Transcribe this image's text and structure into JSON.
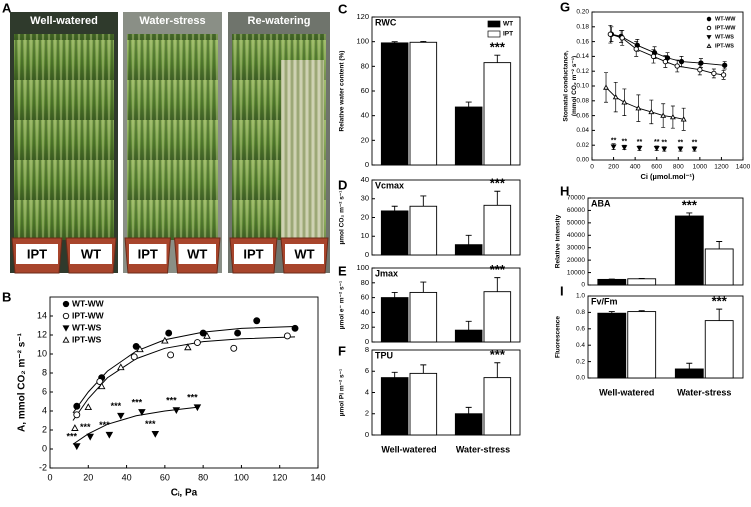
{
  "photo_panel": {
    "label": "A",
    "sections": [
      "Well-watered",
      "Water-stress",
      "Re-watering"
    ],
    "pot_labels": [
      [
        "IPT",
        "WT"
      ],
      [
        "IPT",
        "WT"
      ],
      [
        "IPT",
        "WT"
      ]
    ]
  },
  "chart_data": [
    {
      "type": "scatter",
      "panel": "B",
      "xlabel": "Cᵢ, Pa",
      "ylabel": "A, mmol CO₂ m⁻² s⁻¹",
      "xlim": [
        0,
        140
      ],
      "xticks": [
        0,
        20,
        40,
        60,
        80,
        100,
        120,
        140
      ],
      "ylim": [
        -2,
        16
      ],
      "yticks": [
        -2,
        0,
        2,
        4,
        6,
        8,
        10,
        12,
        14
      ],
      "legend": "upper-left",
      "series": [
        {
          "name": "WT-WW",
          "marker": "filled-circle",
          "color": "#000000",
          "x": [
            14,
            27,
            45,
            62,
            80,
            98,
            108,
            128
          ],
          "values": [
            4.5,
            7.5,
            10.8,
            12.2,
            12.2,
            12.2,
            13.5,
            12.7
          ],
          "fit_x": [
            12,
            20,
            30,
            45,
            60,
            80,
            100,
            128
          ],
          "fit_values": [
            3.8,
            6.0,
            8.2,
            10.3,
            11.5,
            12.3,
            12.7,
            12.9
          ]
        },
        {
          "name": "IPT-WW",
          "marker": "open-circle",
          "color": "#000000",
          "x": [
            14,
            26,
            44,
            63,
            77,
            96,
            124
          ],
          "values": [
            3.6,
            7.1,
            9.7,
            9.9,
            11.2,
            10.6,
            11.9
          ],
          "fit_x": [
            12,
            20,
            30,
            45,
            60,
            80,
            100,
            128
          ],
          "fit_values": [
            3.0,
            5.3,
            7.5,
            9.5,
            10.6,
            11.3,
            11.6,
            11.8
          ]
        },
        {
          "name": "WT-WS",
          "marker": "filled-down-triangle",
          "color": "#000000",
          "x": [
            14,
            21,
            31,
            37,
            48,
            55,
            66,
            77
          ],
          "values": [
            0.3,
            1.3,
            1.5,
            3.5,
            3.9,
            1.6,
            4.1,
            4.4
          ],
          "labels": [
            "***",
            "***",
            "***",
            "***",
            "***",
            "***",
            "***",
            "***"
          ],
          "fit_x": [
            12,
            20,
            30,
            45,
            60,
            77
          ],
          "fit_values": [
            0.5,
            1.6,
            2.6,
            3.5,
            4.0,
            4.4
          ]
        },
        {
          "name": "IPT-WS",
          "marker": "open-up-triangle",
          "color": "#000000",
          "x": [
            13,
            20,
            27,
            37,
            47,
            60,
            72,
            82
          ],
          "values": [
            2.2,
            4.4,
            6.6,
            8.6,
            10.5,
            11.4,
            10.7,
            11.9
          ]
        }
      ]
    },
    {
      "type": "bar",
      "panel": "C",
      "title": "RWC",
      "ylabel": "Relative water content (%)",
      "ylim": [
        0,
        120
      ],
      "yticks": [
        0,
        20,
        40,
        60,
        80,
        100,
        120
      ],
      "legend": "upper-right",
      "series": [
        {
          "name": "WT",
          "color": "#000000",
          "values": [
            99,
            47
          ],
          "errors": [
            1,
            4
          ]
        },
        {
          "name": "IPT",
          "color": "#ffffff",
          "values": [
            99.5,
            83
          ],
          "errors": [
            0.7,
            6
          ],
          "labels": [
            null,
            "***"
          ]
        }
      ]
    },
    {
      "type": "bar",
      "panel": "D",
      "title": "Vcmax",
      "ylabel": "µmol CO₂ m⁻² s⁻¹",
      "ylim": [
        0,
        40
      ],
      "yticks": [
        0,
        10,
        20,
        30,
        40
      ],
      "series": [
        {
          "color": "#000000",
          "values": [
            23.5,
            5.5
          ],
          "errors": [
            2.5,
            5
          ]
        },
        {
          "color": "#ffffff",
          "values": [
            26,
            26.5
          ],
          "errors": [
            5.5,
            7.5
          ],
          "labels": [
            null,
            "***"
          ]
        }
      ]
    },
    {
      "type": "bar",
      "panel": "E",
      "title": "Jmax",
      "ylabel": "µmol e⁻ m⁻² s⁻¹",
      "ylim": [
        0,
        100
      ],
      "yticks": [
        0,
        20,
        40,
        60,
        80,
        100
      ],
      "series": [
        {
          "color": "#000000",
          "values": [
            60,
            16
          ],
          "errors": [
            7,
            12
          ]
        },
        {
          "color": "#ffffff",
          "values": [
            67,
            68
          ],
          "errors": [
            14,
            19
          ],
          "labels": [
            null,
            "***"
          ]
        }
      ]
    },
    {
      "type": "bar",
      "panel": "F",
      "title": "TPU",
      "ylabel": "µmol Pi m⁻² s⁻¹",
      "ylim": [
        0,
        8
      ],
      "yticks": [
        0,
        2,
        4,
        6,
        8
      ],
      "categories": [
        "Well-watered",
        "Water-stress"
      ],
      "series": [
        {
          "color": "#000000",
          "values": [
            5.4,
            2.0
          ],
          "errors": [
            0.5,
            0.6
          ]
        },
        {
          "color": "#ffffff",
          "values": [
            5.8,
            5.4
          ],
          "errors": [
            0.8,
            1.4
          ],
          "labels": [
            null,
            "***"
          ]
        }
      ]
    },
    {
      "type": "line",
      "panel": "G",
      "xlabel": "Ci (µmol.mol⁻¹)",
      "ylabel": [
        "Stomatal conductance,",
        "(mmol CO₂ m⁻² s⁻¹)"
      ],
      "xlim": [
        0,
        1400
      ],
      "xticks": [
        0,
        200,
        400,
        600,
        800,
        1000,
        1200,
        1400
      ],
      "ylim": [
        0,
        0.2
      ],
      "yticks": [
        {
          "value": 0,
          "label": "0.00"
        },
        {
          "value": 0.02,
          "label": "0.02"
        },
        {
          "value": 0.04,
          "label": "0.04"
        },
        {
          "value": 0.06,
          "label": "0.06"
        },
        {
          "value": 0.08,
          "label": "0.08"
        },
        {
          "value": 0.1,
          "label": "0.10"
        },
        {
          "value": 0.12,
          "label": "0.12"
        },
        {
          "value": 0.14,
          "label": "0.14"
        },
        {
          "value": 0.16,
          "label": "0.16"
        },
        {
          "value": 0.18,
          "label": "0.18"
        },
        {
          "value": 0.2,
          "label": "0.20"
        }
      ],
      "legend": "upper-right",
      "series": [
        {
          "name": "WT-WW",
          "marker": "filled-circle",
          "color": "#000000",
          "line": true,
          "x": [
            180,
            270,
            420,
            580,
            700,
            830,
            1010,
            1230
          ],
          "values": [
            0.17,
            0.167,
            0.155,
            0.145,
            0.138,
            0.133,
            0.131,
            0.128
          ],
          "errors": [
            0.01,
            0.008,
            0.008,
            0.008,
            0.007,
            0.007,
            0.006,
            0.005
          ]
        },
        {
          "name": "IPT-WW",
          "marker": "open-circle",
          "color": "#000000",
          "line": true,
          "x": [
            170,
            280,
            410,
            570,
            680,
            790,
            1000,
            1130,
            1220
          ],
          "values": [
            0.17,
            0.165,
            0.15,
            0.14,
            0.133,
            0.127,
            0.122,
            0.117,
            0.115
          ],
          "errors": [
            0.012,
            0.01,
            0.01,
            0.009,
            0.008,
            0.008,
            0.007,
            0.006,
            0.006
          ]
        },
        {
          "name": "WT-WS",
          "marker": "filled-down-triangle",
          "color": "#000000",
          "line": false,
          "x": [
            200,
            300,
            440,
            600,
            670,
            820,
            950
          ],
          "values": [
            0.018,
            0.017,
            0.016,
            0.016,
            0.015,
            0.015,
            0.015
          ],
          "errors": [
            0.004,
            0.003,
            0.003,
            0.003,
            0.003,
            0.003,
            0.003
          ],
          "labels": [
            "**",
            "**",
            "**",
            "**",
            "**",
            "**",
            "**"
          ]
        },
        {
          "name": "IPT-WS",
          "marker": "open-up-triangle",
          "color": "#000000",
          "line": true,
          "x": [
            130,
            220,
            300,
            430,
            550,
            660,
            750,
            850
          ],
          "values": [
            0.098,
            0.085,
            0.078,
            0.07,
            0.065,
            0.06,
            0.058,
            0.055
          ],
          "errors": [
            0.02,
            0.02,
            0.018,
            0.018,
            0.016,
            0.016,
            0.015,
            0.015
          ]
        }
      ]
    },
    {
      "type": "bar",
      "panel": "H",
      "title": "ABA",
      "ylabel": "Relative intensity",
      "ylim": [
        0,
        70000
      ],
      "yticks": [
        0,
        10000,
        20000,
        30000,
        40000,
        50000,
        60000,
        70000
      ],
      "series": [
        {
          "color": "#000000",
          "values": [
            4500,
            55500
          ],
          "errors": [
            300,
            2500
          ],
          "labels": [
            null,
            "***"
          ]
        },
        {
          "color": "#ffffff",
          "values": [
            5000,
            29000
          ],
          "errors": [
            300,
            6000
          ]
        }
      ]
    },
    {
      "type": "bar",
      "panel": "I",
      "title": "Fv/Fm",
      "ylabel": "Fluorescence",
      "ylim": [
        0,
        1
      ],
      "yticks": [
        {
          "value": 0,
          "label": "0.0"
        },
        {
          "value": 0.2,
          "label": "0.2"
        },
        {
          "value": 0.4,
          "label": "0.4"
        },
        {
          "value": 0.6,
          "label": "0.6"
        },
        {
          "value": 0.8,
          "label": "0.8"
        },
        {
          "value": 1,
          "label": "1.0"
        }
      ],
      "categories": [
        "Well-watered",
        "Water-stress"
      ],
      "series": [
        {
          "color": "#000000",
          "values": [
            0.79,
            0.11
          ],
          "errors": [
            0.02,
            0.07
          ]
        },
        {
          "color": "#ffffff",
          "values": [
            0.81,
            0.7
          ],
          "errors": [
            0.01,
            0.14
          ],
          "labels": [
            null,
            "***"
          ]
        }
      ]
    }
  ]
}
